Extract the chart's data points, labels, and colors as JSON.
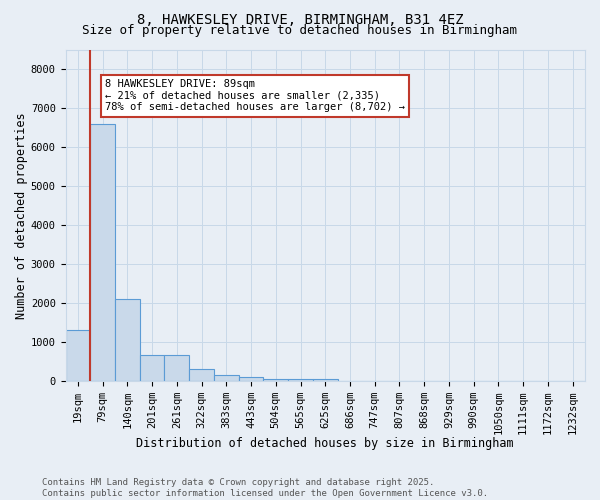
{
  "title": "8, HAWKESLEY DRIVE, BIRMINGHAM, B31 4EZ",
  "subtitle": "Size of property relative to detached houses in Birmingham",
  "xlabel": "Distribution of detached houses by size in Birmingham",
  "ylabel": "Number of detached properties",
  "categories": [
    "19sqm",
    "79sqm",
    "140sqm",
    "201sqm",
    "261sqm",
    "322sqm",
    "383sqm",
    "443sqm",
    "504sqm",
    "565sqm",
    "625sqm",
    "686sqm",
    "747sqm",
    "807sqm",
    "868sqm",
    "929sqm",
    "990sqm",
    "1050sqm",
    "1111sqm",
    "1172sqm",
    "1232sqm"
  ],
  "values": [
    1300,
    6600,
    2100,
    650,
    650,
    300,
    140,
    90,
    40,
    40,
    50,
    0,
    0,
    0,
    0,
    0,
    0,
    0,
    0,
    0,
    0
  ],
  "bar_color": "#c9d9ea",
  "bar_edge_color": "#5b9bd5",
  "bar_edge_width": 0.8,
  "vline_color": "#c0392b",
  "annotation_text": "8 HAWKESLEY DRIVE: 89sqm\n← 21% of detached houses are smaller (2,335)\n78% of semi-detached houses are larger (8,702) →",
  "annotation_box_color": "#ffffff",
  "annotation_box_edge_color": "#c0392b",
  "ylim": [
    0,
    8500
  ],
  "yticks": [
    0,
    1000,
    2000,
    3000,
    4000,
    5000,
    6000,
    7000,
    8000
  ],
  "grid_color": "#c8d8e8",
  "background_color": "#e8eef5",
  "plot_background": "#e8eef5",
  "footer_text": "Contains HM Land Registry data © Crown copyright and database right 2025.\nContains public sector information licensed under the Open Government Licence v3.0.",
  "title_fontsize": 10,
  "subtitle_fontsize": 9,
  "axis_label_fontsize": 8.5,
  "tick_fontsize": 7.5,
  "annotation_fontsize": 7.5,
  "footer_fontsize": 6.5
}
